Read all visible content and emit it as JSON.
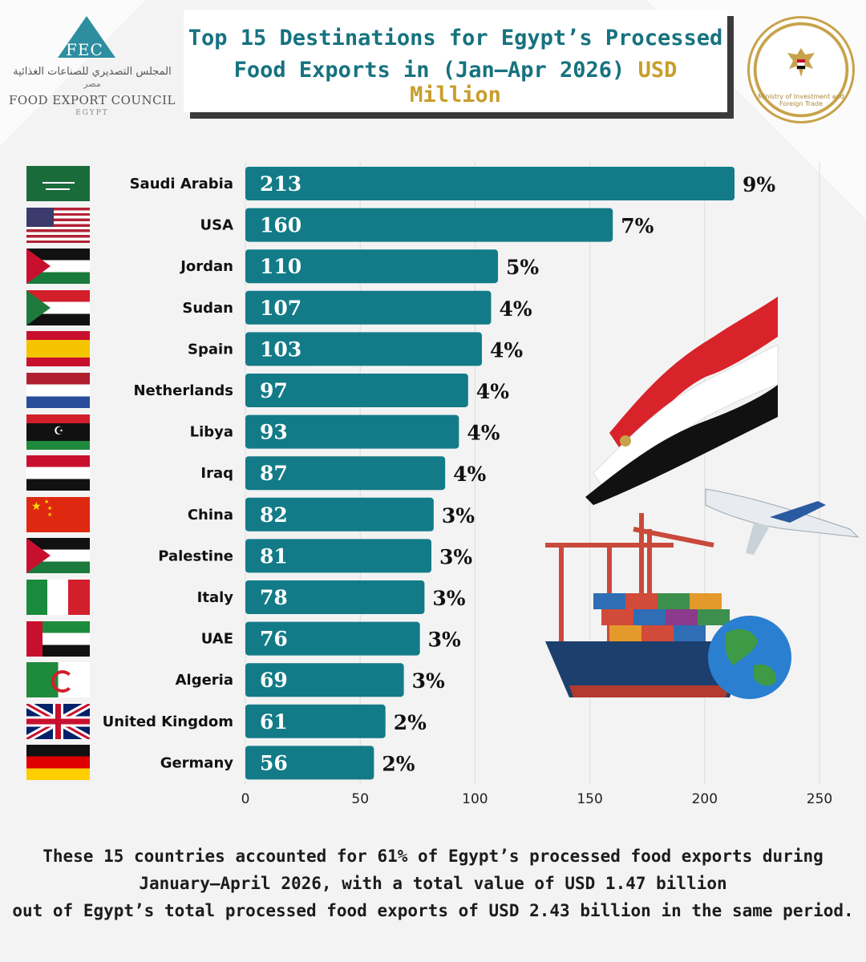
{
  "header": {
    "title_line1": "Top 15 Destinations for Egypt’s Processed",
    "title_line2": "Food Exports in (Jan–Apr 2026) ",
    "title_unit": "USD Million"
  },
  "logo": {
    "abbr": "FEC",
    "arabic_name": "المجلس التصديري للصناعات الغذائية",
    "arabic_sub": "مصر",
    "english_name": "FOOD EXPORT COUNCIL",
    "country": "EGYPT"
  },
  "seal": {
    "text": "Ministry of Investment and Foreign Trade"
  },
  "chart_data": {
    "type": "bar",
    "orientation": "horizontal",
    "categories": [
      "Saudi Arabia",
      "USA",
      "Jordan",
      "Sudan",
      "Spain",
      "Netherlands",
      "Libya",
      "Iraq",
      "China",
      "Palestine",
      "Italy",
      "UAE",
      "Algeria",
      "United Kingdom",
      "Germany"
    ],
    "values": [
      213,
      160,
      110,
      107,
      103,
      97,
      93,
      87,
      82,
      81,
      78,
      76,
      69,
      61,
      56
    ],
    "percent_labels": [
      "9%",
      "7%",
      "5%",
      "4%",
      "4%",
      "4%",
      "4%",
      "4%",
      "3%",
      "3%",
      "3%",
      "3%",
      "3%",
      "2%",
      "2%"
    ],
    "x_ticks": [
      0,
      50,
      100,
      150,
      200,
      250
    ],
    "xlim": [
      0,
      250
    ],
    "grid": "vertical",
    "bar_color": "#137b88"
  },
  "flags": [
    "saudi-arabia",
    "usa",
    "jordan",
    "sudan",
    "spain",
    "netherlands",
    "libya",
    "iraq",
    "china",
    "palestine",
    "italy",
    "uae",
    "algeria",
    "united-kingdom",
    "germany"
  ],
  "footer": {
    "line1": "These 15 countries accounted for 61% of Egypt’s processed food exports during",
    "line2": "January–April 2026, with a total value of USD 1.47 billion",
    "line3": "out of Egypt’s total processed food exports of USD 2.43 billion in the same period."
  }
}
